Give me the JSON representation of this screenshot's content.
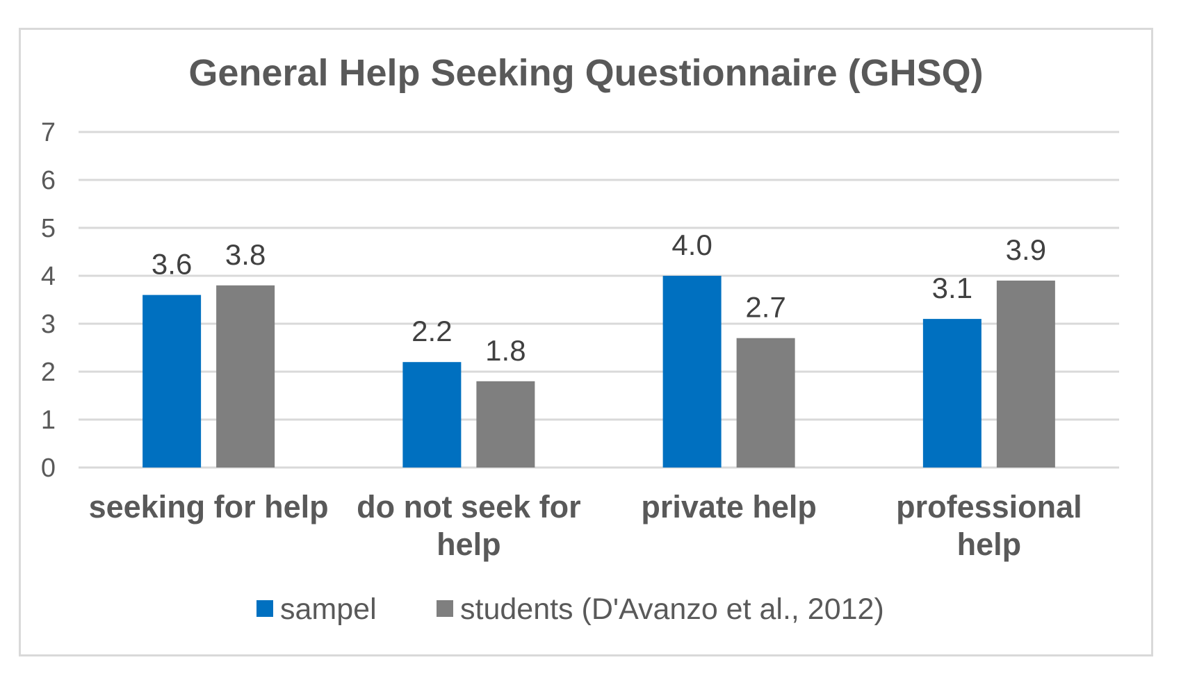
{
  "chart_data": {
    "type": "bar",
    "title": "General Help Seeking Questionnaire (GHSQ)",
    "categories": [
      "seeking for help",
      "do not seek for help",
      "private help",
      "professional help"
    ],
    "category_lines": [
      [
        "seeking for help"
      ],
      [
        "do not seek for",
        "help"
      ],
      [
        "private help"
      ],
      [
        "professional",
        "help"
      ]
    ],
    "series": [
      {
        "name": "sampel",
        "values": [
          3.6,
          2.2,
          4.0,
          3.1
        ],
        "labels": [
          "3.6",
          "2.2",
          "4.0",
          "3.1"
        ],
        "color": "#0070c0"
      },
      {
        "name": "students (D'Avanzo et al., 2012)",
        "values": [
          3.8,
          1.8,
          2.7,
          3.9
        ],
        "labels": [
          "3.8",
          "1.8",
          "2.7",
          "3.9"
        ],
        "color": "#7f7f7f"
      }
    ],
    "ylim": [
      0,
      7
    ],
    "yticks": [
      "0",
      "1",
      "2",
      "3",
      "4",
      "5",
      "6",
      "7"
    ],
    "grid": true,
    "legend_position": "bottom",
    "xlabel": "",
    "ylabel": ""
  }
}
